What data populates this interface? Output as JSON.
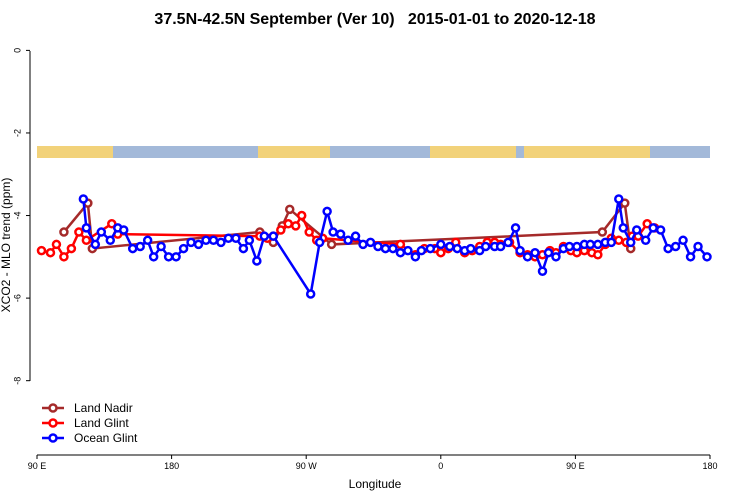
{
  "chart_data": {
    "type": "line",
    "title": "37.5N-42.5N September (Ver 10)   2015-01-01 to 2020-12-18",
    "x_label": "Longitude",
    "y_label": "XCO2 - MLO trend (ppm)",
    "xlim": [
      90,
      540
    ],
    "ylim": [
      -9.8,
      0.3
    ],
    "xticks": [
      {
        "value": 90,
        "label": "90 E"
      },
      180,
      {
        "value": 270,
        "label": "90 W"
      },
      {
        "value": 360,
        "label": "0"
      },
      {
        "value": 450,
        "label": "90 E"
      },
      {
        "value": 540,
        "label": "180"
      }
    ],
    "yticks": [
      0,
      -2,
      -4,
      -6,
      -8
    ],
    "legend": "bottom-left",
    "series": [
      {
        "name": "Land Nadir",
        "color": "#a52a2a",
        "x": [
          108,
          124,
          127,
          239,
          248,
          254,
          259,
          287,
          468,
          483,
          487
        ],
        "values": [
          -4.4,
          -3.7,
          -4.8,
          -4.4,
          -4.65,
          -4.25,
          -3.85,
          -4.7,
          -4.4,
          -3.7,
          -4.8
        ]
      },
      {
        "name": "Land Glint",
        "color": "#ff0000",
        "x": [
          93,
          99,
          103,
          108,
          113,
          118,
          123,
          140,
          144,
          239,
          244,
          248,
          253,
          258,
          263,
          267,
          272,
          277,
          281,
          333,
          343,
          349,
          356,
          360,
          365,
          370,
          376,
          381,
          386,
          391,
          396,
          400,
          406,
          413,
          418,
          423,
          428,
          433,
          437,
          442,
          447,
          451,
          456,
          461,
          465,
          470,
          474,
          479,
          484,
          488,
          492,
          498,
          503
        ],
        "values": [
          -4.85,
          -4.9,
          -4.7,
          -5.0,
          -4.8,
          -4.4,
          -4.6,
          -4.2,
          -4.45,
          -4.5,
          -4.55,
          -4.5,
          -4.35,
          -4.2,
          -4.25,
          -4.0,
          -4.4,
          -4.6,
          -4.55,
          -4.7,
          -4.95,
          -4.8,
          -4.8,
          -4.9,
          -4.8,
          -4.65,
          -4.9,
          -4.85,
          -4.75,
          -4.65,
          -4.65,
          -4.7,
          -4.65,
          -4.9,
          -4.95,
          -5.0,
          -4.95,
          -4.85,
          -4.9,
          -4.75,
          -4.85,
          -4.9,
          -4.85,
          -4.9,
          -4.95,
          -4.7,
          -4.55,
          -4.6,
          -4.65,
          -4.5,
          -4.5,
          -4.2,
          -4.3
        ]
      },
      {
        "name": "Ocean Glint",
        "color": "#0000ff",
        "x": [
          121,
          123,
          129,
          133,
          139,
          144,
          148,
          154,
          159,
          164,
          168,
          173,
          178,
          183,
          188,
          193,
          198,
          203,
          208,
          213,
          218,
          223,
          228,
          232,
          237,
          242,
          248,
          273,
          279,
          284,
          288,
          293,
          298,
          303,
          308,
          313,
          318,
          323,
          328,
          333,
          338,
          343,
          347,
          353,
          360,
          366,
          371,
          376,
          380,
          386,
          390,
          396,
          400,
          405,
          410,
          413,
          418,
          423,
          428,
          432,
          437,
          442,
          446,
          451,
          456,
          460,
          465,
          470,
          474,
          479,
          482,
          487,
          491,
          497,
          502,
          507,
          512,
          517,
          522,
          527,
          532,
          538
        ],
        "values": [
          -3.6,
          -4.3,
          -4.7,
          -4.4,
          -4.6,
          -4.3,
          -4.35,
          -4.8,
          -4.75,
          -4.6,
          -5.0,
          -4.75,
          -5.0,
          -5.0,
          -4.8,
          -4.65,
          -4.7,
          -4.6,
          -4.6,
          -4.65,
          -4.55,
          -4.55,
          -4.8,
          -4.6,
          -5.1,
          -4.5,
          -4.5,
          -5.9,
          -4.65,
          -3.9,
          -4.4,
          -4.45,
          -4.6,
          -4.5,
          -4.7,
          -4.65,
          -4.75,
          -4.8,
          -4.8,
          -4.9,
          -4.85,
          -5.0,
          -4.85,
          -4.8,
          -4.7,
          -4.75,
          -4.8,
          -4.85,
          -4.8,
          -4.85,
          -4.75,
          -4.75,
          -4.75,
          -4.65,
          -4.3,
          -4.85,
          -5.0,
          -4.9,
          -5.35,
          -4.9,
          -5.0,
          -4.8,
          -4.75,
          -4.75,
          -4.7,
          -4.7,
          -4.7,
          -4.65,
          -4.65,
          -3.6,
          -4.3,
          -4.65,
          -4.35,
          -4.6,
          -4.3,
          -4.35,
          -4.8,
          -4.75,
          -4.6,
          -5.0,
          -4.75,
          -5.0
        ]
      }
    ]
  }
}
